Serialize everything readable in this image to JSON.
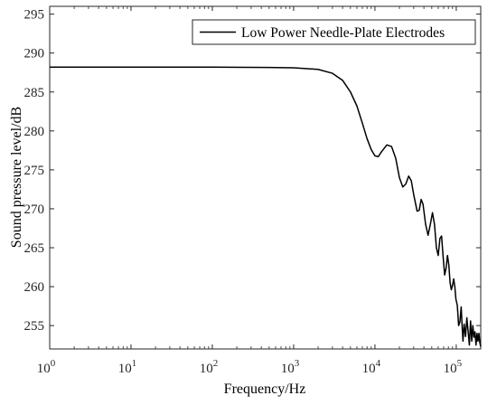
{
  "chart_data": {
    "type": "line",
    "title": "",
    "xlabel": "Frequency/Hz",
    "ylabel": "Sound pressure level/dB",
    "x_scale": "log",
    "xlim": [
      1,
      200000
    ],
    "ylim": [
      252,
      296
    ],
    "grid": false,
    "legend_position": "top-right",
    "x_ticks": [
      {
        "base": "10",
        "exp": "0"
      },
      {
        "base": "10",
        "exp": "1"
      },
      {
        "base": "10",
        "exp": "2"
      },
      {
        "base": "10",
        "exp": "3"
      },
      {
        "base": "10",
        "exp": "4"
      },
      {
        "base": "10",
        "exp": "5"
      }
    ],
    "x_tick_values": [
      1,
      10,
      100,
      1000,
      10000,
      100000
    ],
    "y_ticks": [
      "255",
      "260",
      "265",
      "270",
      "275",
      "280",
      "285",
      "290",
      "295"
    ],
    "y_tick_values": [
      255,
      260,
      265,
      270,
      275,
      280,
      285,
      290,
      295
    ],
    "series": [
      {
        "name": "Low Power Needle-Plate Electrodes",
        "color": "#000000",
        "points": [
          [
            1,
            288.2
          ],
          [
            10,
            288.2
          ],
          [
            100,
            288.2
          ],
          [
            500,
            288.15
          ],
          [
            1000,
            288.1
          ],
          [
            2000,
            287.9
          ],
          [
            3000,
            287.4
          ],
          [
            4000,
            286.5
          ],
          [
            5000,
            285.0
          ],
          [
            6000,
            283.2
          ],
          [
            7000,
            281.0
          ],
          [
            8000,
            279.0
          ],
          [
            9000,
            277.6
          ],
          [
            10000,
            276.8
          ],
          [
            11000,
            276.7
          ],
          [
            12000,
            277.3
          ],
          [
            14000,
            278.2
          ],
          [
            16000,
            278.0
          ],
          [
            18000,
            276.5
          ],
          [
            20000,
            274.0
          ],
          [
            22000,
            272.8
          ],
          [
            24000,
            273.2
          ],
          [
            26000,
            274.2
          ],
          [
            28000,
            273.6
          ],
          [
            30000,
            271.8
          ],
          [
            33000,
            269.7
          ],
          [
            35000,
            269.8
          ],
          [
            37000,
            271.2
          ],
          [
            39000,
            270.6
          ],
          [
            42000,
            268.0
          ],
          [
            45000,
            266.6
          ],
          [
            48000,
            268.0
          ],
          [
            51000,
            269.5
          ],
          [
            54000,
            268.0
          ],
          [
            57000,
            265.0
          ],
          [
            60000,
            264.0
          ],
          [
            63000,
            266.2
          ],
          [
            66000,
            266.5
          ],
          [
            69000,
            263.8
          ],
          [
            72000,
            261.5
          ],
          [
            75000,
            262.4
          ],
          [
            78000,
            264.0
          ],
          [
            81000,
            262.8
          ],
          [
            84000,
            260.5
          ],
          [
            87000,
            259.6
          ],
          [
            90000,
            260.2
          ],
          [
            93000,
            261.0
          ],
          [
            96000,
            260.0
          ],
          [
            99000,
            258.4
          ],
          [
            103000,
            257.6
          ],
          [
            107000,
            255.0
          ],
          [
            111000,
            255.5
          ],
          [
            115000,
            257.4
          ],
          [
            118000,
            255.0
          ],
          [
            121000,
            253.0
          ],
          [
            125000,
            255.2
          ],
          [
            130000,
            253.6
          ],
          [
            135000,
            256.0
          ],
          [
            140000,
            254.2
          ],
          [
            145000,
            252.5
          ],
          [
            150000,
            255.6
          ],
          [
            155000,
            253.0
          ],
          [
            160000,
            255.0
          ],
          [
            165000,
            253.5
          ],
          [
            170000,
            254.2
          ],
          [
            175000,
            252.5
          ],
          [
            180000,
            254.0
          ],
          [
            185000,
            253.0
          ],
          [
            190000,
            254.0
          ],
          [
            195000,
            252.8
          ],
          [
            200000,
            252.3
          ]
        ]
      }
    ]
  }
}
